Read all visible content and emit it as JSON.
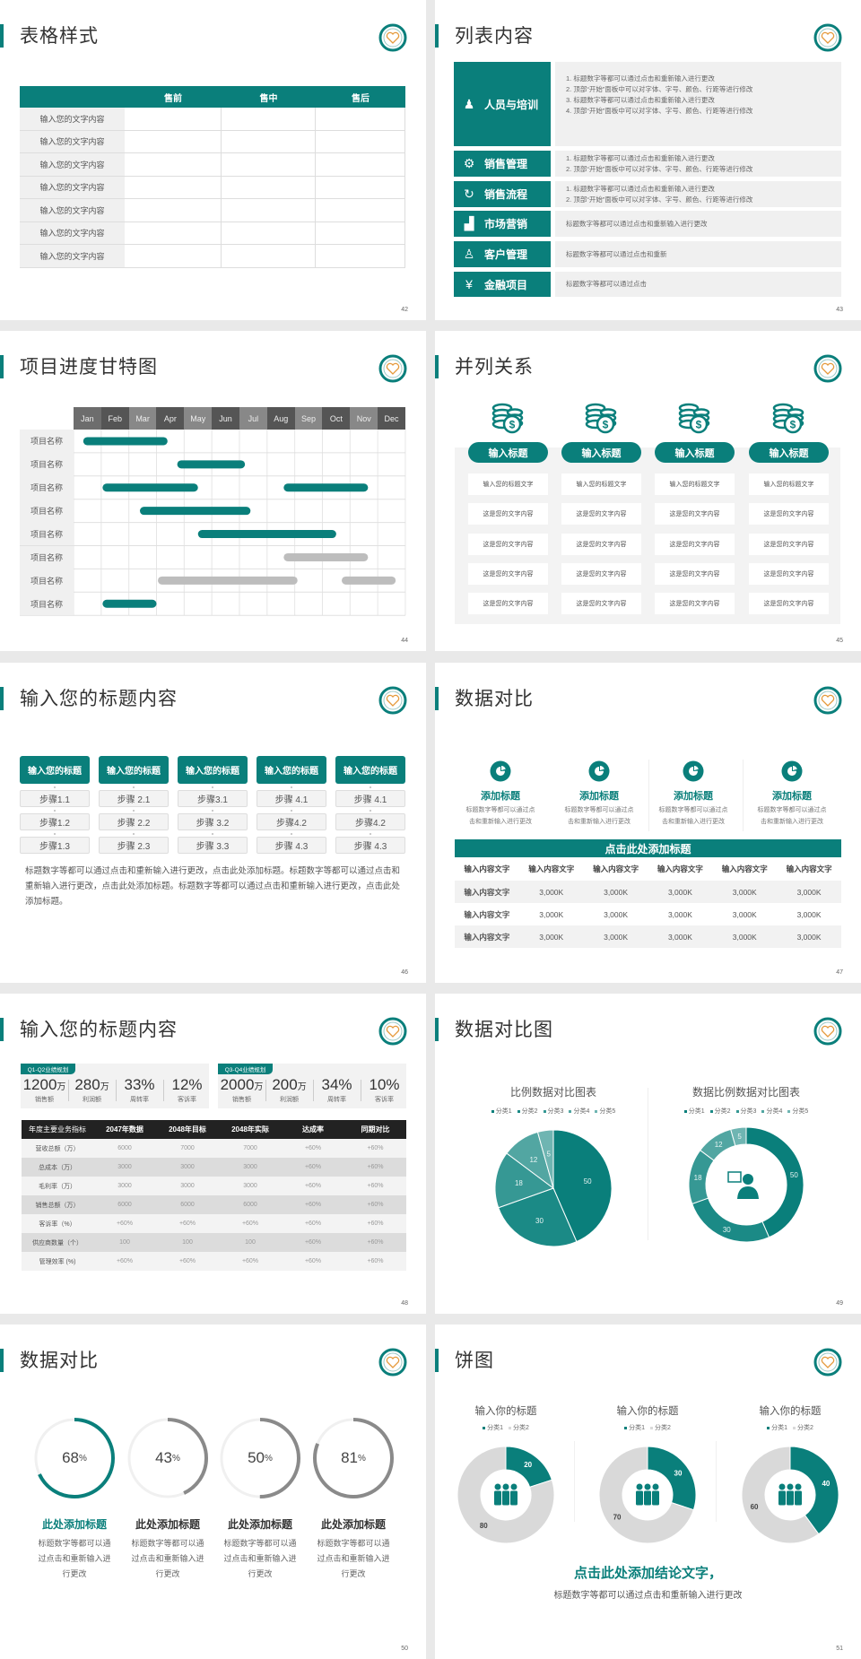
{
  "theme": {
    "accent": "#0a7f7b",
    "gray_bar": "#bdbdbd",
    "ring_gray": "#8a8a8a",
    "pie_shades": [
      "#0a7f7b",
      "#1b8a86",
      "#369894",
      "#52a6a2",
      "#6fb5b2"
    ],
    "donut_rest": "#d9d9d9"
  },
  "slides": [
    {
      "title": "表格样式",
      "page": "42",
      "table": {
        "headers": [
          "",
          "售前",
          "售中",
          "售后"
        ],
        "row_labels": [
          "输入您的文字内容",
          "输入您的文字内容",
          "输入您的文字内容",
          "输入您的文字内容",
          "输入您的文字内容",
          "输入您的文字内容",
          "输入您的文字内容"
        ]
      }
    },
    {
      "title": "列表内容",
      "page": "43",
      "items": [
        {
          "label": "人员与培训",
          "icon": "training-icon",
          "glyph": "♟",
          "lines": [
            "1.  标题数字等都可以通过点击和重新输入进行更改",
            "2.  顶部“开始”面板中可以对字体、字号、颜色、行距等进行修改",
            "3.  标题数字等都可以通过点击和重新输入进行更改",
            "4.  顶部“开始”面板中可以对字体、字号、颜色、行距等进行修改"
          ]
        },
        {
          "label": "销售管理",
          "icon": "user-gear-icon",
          "glyph": "⚙",
          "lines": [
            "1.  标题数字等都可以通过点击和重新输入进行更改",
            "2.  顶部“开始”面板中可以对字体、字号、颜色、行距等进行修改"
          ]
        },
        {
          "label": "销售流程",
          "icon": "cycle-icon",
          "glyph": "↻",
          "lines": [
            "1.  标题数字等都可以通过点击和重新输入进行更改",
            "2.  顶部“开始”面板中可以对字体、字号、颜色、行距等进行修改"
          ]
        },
        {
          "label": "市场营销",
          "icon": "bar-chart-icon",
          "glyph": "▟",
          "lines": [
            "标题数字等都可以通过点击和重新输入进行更改"
          ]
        },
        {
          "label": "客户管理",
          "icon": "users-icon",
          "glyph": "♙",
          "lines": [
            "标题数字等都可以通过点击和重新"
          ]
        },
        {
          "label": "金融项目",
          "icon": "money-hand-icon",
          "glyph": "¥",
          "lines": [
            "标题数字等都可以通过点击"
          ]
        }
      ]
    },
    {
      "title": "项目进度甘特图",
      "page": "44",
      "months": [
        "Jan",
        "Feb",
        "Mar",
        "Apr",
        "May",
        "Jun",
        "Jul",
        "Aug",
        "Sep",
        "Oct",
        "Nov",
        "Dec"
      ],
      "rows": [
        {
          "label": "项目名称",
          "bars": [
            {
              "start": 0.35,
              "end": 3.4,
              "status": "active"
            }
          ]
        },
        {
          "label": "项目名称",
          "bars": [
            {
              "start": 3.75,
              "end": 6.2,
              "status": "active"
            }
          ]
        },
        {
          "label": "项目名称",
          "bars": [
            {
              "start": 1.05,
              "end": 4.5,
              "status": "active"
            },
            {
              "start": 7.6,
              "end": 10.65,
              "status": "active"
            }
          ]
        },
        {
          "label": "项目名称",
          "bars": [
            {
              "start": 2.4,
              "end": 6.4,
              "status": "active"
            }
          ]
        },
        {
          "label": "项目名称",
          "bars": [
            {
              "start": 4.5,
              "end": 9.5,
              "status": "active"
            }
          ]
        },
        {
          "label": "项目名称",
          "bars": [
            {
              "start": 7.6,
              "end": 10.65,
              "status": "planned"
            }
          ]
        },
        {
          "label": "项目名称",
          "bars": [
            {
              "start": 3.05,
              "end": 8.1,
              "status": "planned"
            },
            {
              "start": 9.7,
              "end": 11.65,
              "status": "planned"
            }
          ]
        },
        {
          "label": "项目名称",
          "bars": [
            {
              "start": 1.05,
              "end": 3.0,
              "status": "active"
            }
          ]
        }
      ]
    },
    {
      "title": "并列关系",
      "page": "45",
      "columns": [
        {
          "heading": "输入标题",
          "cells": [
            "输入您的标题文字",
            "这是您的文字内容",
            "这是您的文字内容",
            "这是您的文字内容",
            "这是您的文字内容"
          ]
        },
        {
          "heading": "输入标题",
          "cells": [
            "输入您的标题文字",
            "这是您的文字内容",
            "这是您的文字内容",
            "这是您的文字内容",
            "这是您的文字内容"
          ]
        },
        {
          "heading": "输入标题",
          "cells": [
            "输入您的标题文字",
            "这是您的文字内容",
            "这是您的文字内容",
            "这是您的文字内容",
            "这是您的文字内容"
          ]
        },
        {
          "heading": "输入标题",
          "cells": [
            "输入您的标题文字",
            "这是您的文字内容",
            "这是您的文字内容",
            "这是您的文字内容",
            "这是您的文字内容"
          ]
        }
      ]
    },
    {
      "title": "输入您的标题内容",
      "page": "46",
      "columns": [
        {
          "heading": "输入您的标题",
          "steps": [
            "步骤1.1",
            "步骤1.2",
            "步骤1.3"
          ]
        },
        {
          "heading": "输入您的标题",
          "steps": [
            "步骤 2.1",
            "步骤 2.2",
            "步骤 2.3"
          ]
        },
        {
          "heading": "输入您的标题",
          "steps": [
            "步骤3.1",
            "步骤 3.2",
            "步骤 3.3"
          ]
        },
        {
          "heading": "输入您的标题",
          "steps": [
            "步骤 4.1",
            "步骤4.2",
            "步骤 4.3"
          ]
        },
        {
          "heading": "输入您的标题",
          "steps": [
            "步骤 4.1",
            "步骤4.2",
            "步骤 4.3"
          ]
        }
      ],
      "paragraph": "标题数字等都可以通过点击和重新输入进行更改，点击此处添加标题。标题数字等都可以通过点击和重新输入进行更改，点击此处添加标题。标题数字等都可以通过点击和重新输入进行更改，点击此处添加标题。"
    },
    {
      "title": "数据对比",
      "page": "47",
      "features": [
        {
          "title": "添加标题",
          "desc_lines": [
            "标题数字等都可以通过点",
            "击和重新输入进行更改"
          ]
        },
        {
          "title": "添加标题",
          "desc_lines": [
            "标题数字等都可以通过点",
            "击和重新输入进行更改"
          ]
        },
        {
          "title": "添加标题",
          "desc_lines": [
            "标题数字等都可以通过点",
            "击和重新输入进行更改"
          ]
        },
        {
          "title": "添加标题",
          "desc_lines": [
            "标题数字等都可以通过点",
            "击和重新输入进行更改"
          ]
        }
      ],
      "table": {
        "title": "点击此处添加标题",
        "headers": [
          "输入内容文字",
          "输入内容文字",
          "输入内容文字",
          "输入内容文字",
          "输入内容文字",
          "输入内容文字"
        ],
        "rows": [
          [
            "输入内容文字",
            "3,000K",
            "3,000K",
            "3,000K",
            "3,000K",
            "3,000K"
          ],
          [
            "输入内容文字",
            "3,000K",
            "3,000K",
            "3,000K",
            "3,000K",
            "3,000K"
          ],
          [
            "输入内容文字",
            "3,000K",
            "3,000K",
            "3,000K",
            "3,000K",
            "3,000K"
          ]
        ]
      }
    },
    {
      "title": "输入您的标题内容",
      "page": "48",
      "kpi_groups": [
        {
          "tag": "Q1-Q2业绩规划",
          "items": [
            {
              "value": "1200",
              "unit": "万",
              "label": "销售额"
            },
            {
              "value": "280",
              "unit": "万",
              "label": "利润额"
            },
            {
              "value": "33%",
              "unit": "",
              "label": "周转率"
            },
            {
              "value": "12%",
              "unit": "",
              "label": "客诉率"
            }
          ]
        },
        {
          "tag": "Q3-Q4业绩规划",
          "items": [
            {
              "value": "2000",
              "unit": "万",
              "label": "销售额"
            },
            {
              "value": "200",
              "unit": "万",
              "label": "利润额"
            },
            {
              "value": "34%",
              "unit": "",
              "label": "周转率"
            },
            {
              "value": "10%",
              "unit": "",
              "label": "客诉率"
            }
          ]
        }
      ],
      "table": {
        "headers": [
          "年度主要业务指标",
          "2047年数据",
          "2048年目标",
          "2048年实际",
          "达成率",
          "同期对比"
        ],
        "rows": [
          [
            "营收总额（万）",
            "6000",
            "7000",
            "7000",
            "+60%",
            "+60%"
          ],
          [
            "总成本（万）",
            "3000",
            "3000",
            "3000",
            "+60%",
            "+60%"
          ],
          [
            "毛利率（万）",
            "3000",
            "3000",
            "3000",
            "+60%",
            "+60%"
          ],
          [
            "销售总额（万）",
            "6000",
            "6000",
            "6000",
            "+60%",
            "+60%"
          ],
          [
            "客诉率（%）",
            "+60%",
            "+60%",
            "+60%",
            "+60%",
            "+60%"
          ],
          [
            "供应商数量（个）",
            "100",
            "100",
            "100",
            "+60%",
            "+60%"
          ],
          [
            "管理效率 (%)",
            "+60%",
            "+60%",
            "+60%",
            "+60%",
            "+60%"
          ]
        ]
      }
    },
    {
      "title": "数据对比图",
      "page": "49"
    },
    {
      "title": "数据对比",
      "page": "50",
      "rings": [
        {
          "percent": 68,
          "value_text": "68",
          "unit": "%",
          "title": "此处添加标题",
          "highlight": true,
          "desc_lines": [
            "标题数字等都可以通",
            "过点击和重新输入进",
            "行更改"
          ]
        },
        {
          "percent": 43,
          "value_text": "43",
          "unit": "%",
          "title": "此处添加标题",
          "highlight": false,
          "desc_lines": [
            "标题数字等都可以通",
            "过点击和重新输入进",
            "行更改"
          ]
        },
        {
          "percent": 50,
          "value_text": "50",
          "unit": "%",
          "title": "此处添加标题",
          "highlight": false,
          "desc_lines": [
            "标题数字等都可以通",
            "过点击和重新输入进",
            "行更改"
          ]
        },
        {
          "percent": 81,
          "value_text": "81",
          "unit": "%",
          "title": "此处添加标题",
          "highlight": false,
          "desc_lines": [
            "标题数字等都可以通",
            "过点击和重新输入进",
            "行更改"
          ]
        }
      ]
    },
    {
      "title": "饼图",
      "page": "51",
      "conclusion": "点击此处添加结论文字，",
      "subtext": "标题数字等都可以通过点击和重新输入进行更改"
    }
  ],
  "chart_data": [
    {
      "type": "pie",
      "title": "比例数据对比图表",
      "legend": "top",
      "categories": [
        "分类1",
        "分类2",
        "分类3",
        "分类4",
        "分类5"
      ],
      "values": [
        50,
        30,
        18,
        12,
        5
      ]
    },
    {
      "type": "pie",
      "variant": "donut",
      "title": "数据比例数据对比图表",
      "legend": "top",
      "center_icon": "customer-service-icon",
      "categories": [
        "分类1",
        "分类2",
        "分类3",
        "分类4",
        "分类5"
      ],
      "values": [
        50,
        30,
        18,
        12,
        5
      ]
    },
    {
      "type": "pie",
      "variant": "donut",
      "title": "输入你的标题",
      "legend": "top",
      "center_icon": "team-icon",
      "categories": [
        "分类1",
        "分类2"
      ],
      "values": [
        20,
        80
      ]
    },
    {
      "type": "pie",
      "variant": "donut",
      "title": "输入你的标题",
      "legend": "top",
      "center_icon": "team-icon",
      "categories": [
        "分类1",
        "分类2"
      ],
      "values": [
        30,
        70
      ]
    },
    {
      "type": "pie",
      "variant": "donut",
      "title": "输入你的标题",
      "legend": "top",
      "center_icon": "team-icon",
      "categories": [
        "分类1",
        "分类2"
      ],
      "values": [
        40,
        60
      ]
    }
  ]
}
